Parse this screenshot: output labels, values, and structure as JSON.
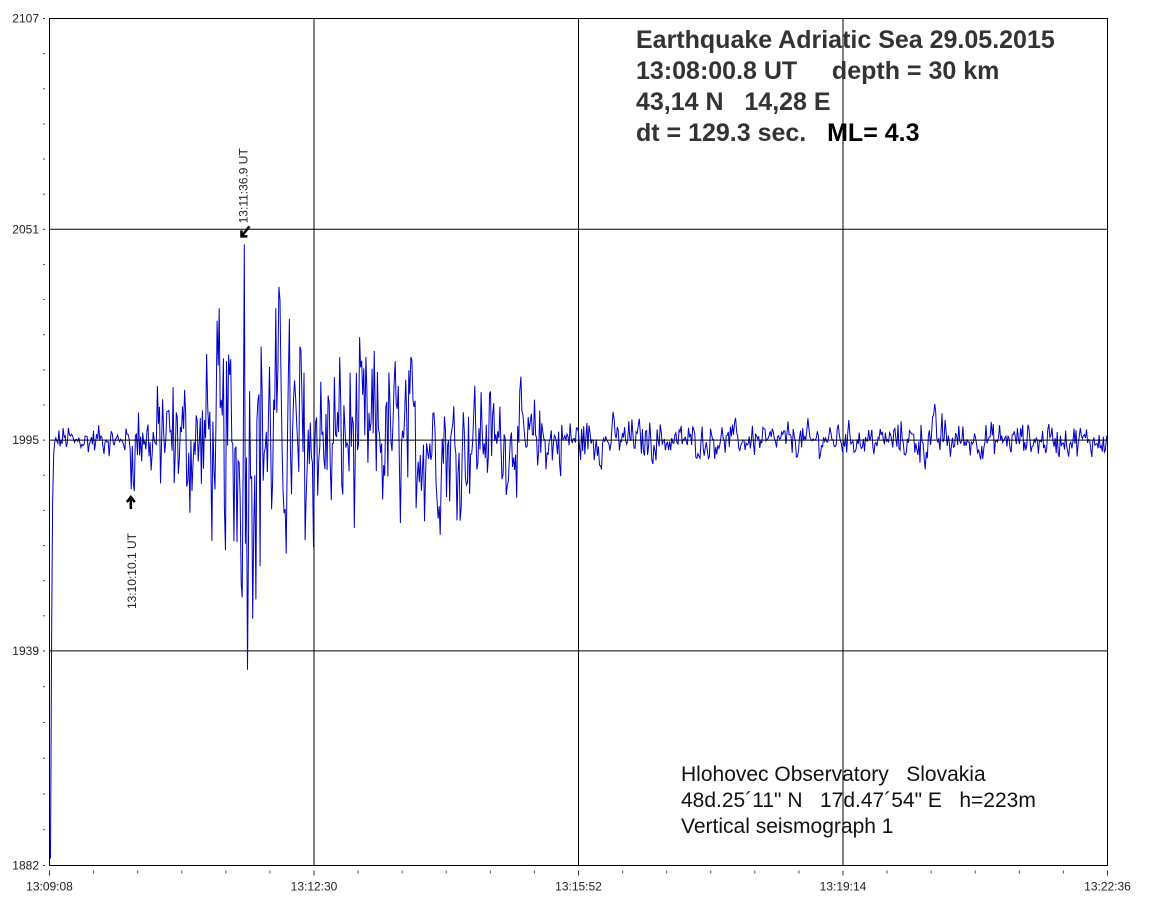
{
  "chart_data": {
    "type": "line",
    "title": "Earthquake Adriatic Sea 29.05.2015",
    "info_lines": [
      "13:08:00.8 UT     depth = 30 km",
      "43,14 N   14,28 E",
      "dt = 129.3 sec."
    ],
    "magnitude": "ML= 4.3",
    "station_lines": [
      "Hlohovec Observatory   Slovakia",
      "48d.25´11\" N   17d.47´54\" E   h=223m",
      "Vertical seismograph 1"
    ],
    "xlabel": "",
    "ylabel": "",
    "x_start_seconds": 0,
    "x_end_seconds": 808,
    "x_ticks": [
      {
        "label": "13:09:08",
        "t": 0
      },
      {
        "label": "13:12:30",
        "t": 202
      },
      {
        "label": "13:15:52",
        "t": 404
      },
      {
        "label": "13:19:14",
        "t": 606
      },
      {
        "label": "13:22:36",
        "t": 808
      }
    ],
    "ylim": [
      1882,
      2107
    ],
    "y_ticks": [
      1882,
      1939,
      1995,
      2051,
      2107
    ],
    "baseline": 1995,
    "grid": true,
    "annotations": [
      {
        "label": "13:10:10.1 UT",
        "t": 62.1,
        "value": 1982,
        "kind": "P-arrival"
      },
      {
        "label": "13:11:36.9 UT",
        "t": 148.9,
        "value": 2047,
        "kind": "S-arrival"
      }
    ],
    "series": [
      {
        "name": "Vertical seismograph 1",
        "color": "#0000c8",
        "peak_max": {
          "t": 148.9,
          "value": 2047
        },
        "peak_min": {
          "t": 151,
          "value": 1934
        },
        "amplitude_envelope": [
          [
            0,
            3
          ],
          [
            60,
            3
          ],
          [
            63,
            9
          ],
          [
            80,
            10
          ],
          [
            100,
            14
          ],
          [
            120,
            16
          ],
          [
            135,
            22
          ],
          [
            150,
            30
          ],
          [
            175,
            26
          ],
          [
            200,
            20
          ],
          [
            230,
            16
          ],
          [
            260,
            16
          ],
          [
            300,
            13
          ],
          [
            340,
            10
          ],
          [
            370,
            7
          ],
          [
            400,
            5
          ],
          [
            430,
            4
          ],
          [
            520,
            3
          ],
          [
            640,
            3
          ],
          [
            670,
            5
          ],
          [
            680,
            5
          ],
          [
            700,
            3
          ],
          [
            808,
            3
          ]
        ]
      }
    ]
  }
}
